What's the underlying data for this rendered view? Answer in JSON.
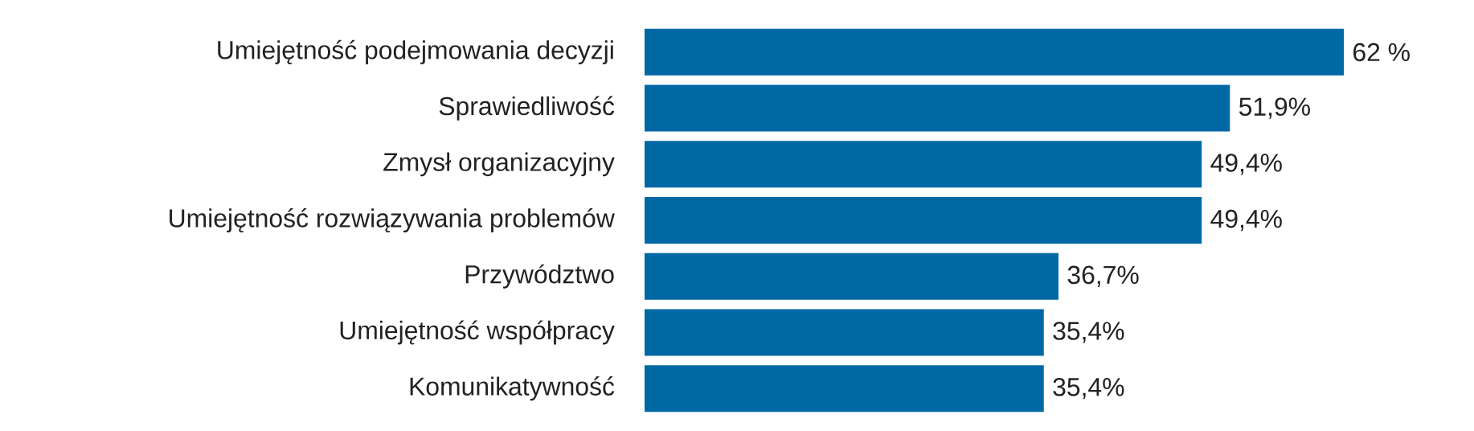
{
  "chart_data": {
    "type": "bar",
    "orientation": "horizontal",
    "categories": [
      "Umiejętność podejmowania decyzji",
      "Sprawiedliwość",
      "Zmysł organizacyjny",
      "Umiejętność rozwiązywania problemów",
      "Przywództwo",
      "Umiejętność współpracy",
      "Komunikatywność"
    ],
    "values": [
      62,
      51.9,
      49.4,
      49.4,
      36.7,
      35.4,
      35.4
    ],
    "value_labels": [
      "62 %",
      "51,9%",
      "49,4%",
      "49,4%",
      "36,7%",
      "35,4%",
      "35,4%"
    ],
    "color": "#0068a5"
  }
}
